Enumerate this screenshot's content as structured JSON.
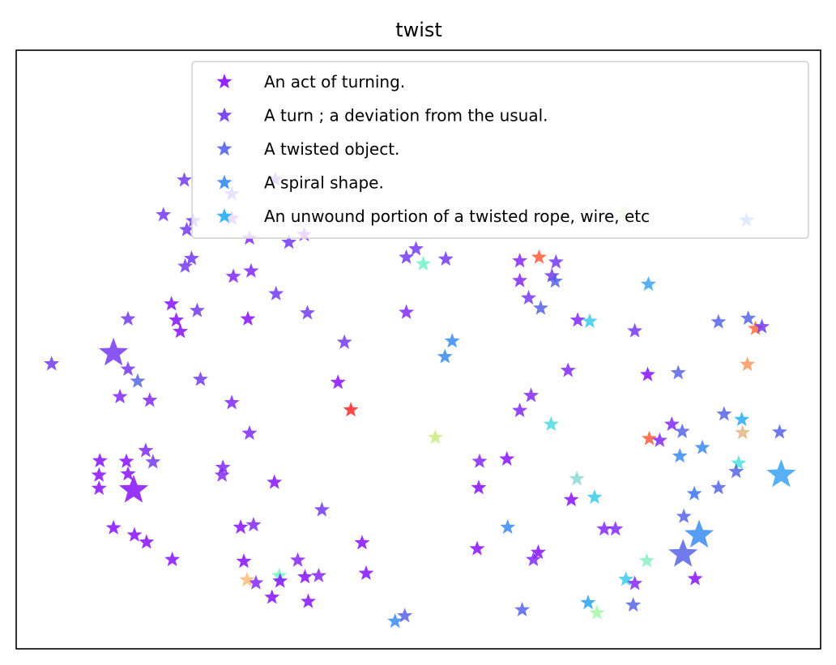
{
  "chart_data": {
    "type": "scatter",
    "title": "twist",
    "xlabel": "",
    "ylabel": "",
    "xlim": [
      0,
      100
    ],
    "ylim": [
      0,
      100
    ],
    "grid": false,
    "axes_ticks": false,
    "legend_placement": "upper-right",
    "marker": "star",
    "legend": [
      {
        "label": "An act of turning.",
        "color": "#8000ff"
      },
      {
        "label": "A turn ; a deviation from the usual.",
        "color": "#6a2cf0"
      },
      {
        "label": "A twisted object.",
        "color": "#4c5ae6"
      },
      {
        "label": "A spiral shape.",
        "color": "#2c83f2"
      },
      {
        "label": "An unwound portion of a twisted rope, wire, etc",
        "color": "#18a8ec"
      }
    ],
    "points": [
      {
        "x": 20.9,
        "y": 78.3,
        "s": 1,
        "c": "#6a2cf0"
      },
      {
        "x": 22.0,
        "y": 71.5,
        "s": 1,
        "c": "#6a2cf0"
      },
      {
        "x": 29.2,
        "y": 63.1,
        "s": 1,
        "c": "#7a1af8"
      },
      {
        "x": 35.8,
        "y": 69.2,
        "s": 1,
        "c": "#8000ff"
      },
      {
        "x": 29.0,
        "y": 68.6,
        "s": 1,
        "c": "#7a1af8"
      },
      {
        "x": 20.4,
        "y": 53.0,
        "s": 1,
        "c": "#8000ff"
      },
      {
        "x": 32.2,
        "y": 78.4,
        "s": 1,
        "c": "#6a2cf0"
      },
      {
        "x": 26.8,
        "y": 76.0,
        "s": 1,
        "c": "#6a2cf0"
      },
      {
        "x": 33.9,
        "y": 67.9,
        "s": 1,
        "c": "#6a2cf0"
      },
      {
        "x": 27.0,
        "y": 62.2,
        "s": 1,
        "c": "#7a1af8"
      },
      {
        "x": 36.2,
        "y": 56.1,
        "s": 1,
        "c": "#6a2cf0"
      },
      {
        "x": 32.3,
        "y": 59.3,
        "s": 1,
        "c": "#6a2cf0"
      },
      {
        "x": 19.9,
        "y": 54.9,
        "s": 1,
        "c": "#8000ff"
      },
      {
        "x": 22.5,
        "y": 56.5,
        "s": 1,
        "c": "#6a2cf0"
      },
      {
        "x": 19.3,
        "y": 57.6,
        "s": 1,
        "c": "#8000ff"
      },
      {
        "x": 21.8,
        "y": 65.2,
        "s": 1,
        "c": "#6a2cf0"
      },
      {
        "x": 21.0,
        "y": 63.9,
        "s": 1,
        "c": "#6a2cf0"
      },
      {
        "x": 26.8,
        "y": 71.9,
        "s": 1,
        "c": "#7a1af8"
      },
      {
        "x": 18.3,
        "y": 72.5,
        "s": 1,
        "c": "#6a2cf0"
      },
      {
        "x": 21.2,
        "y": 70.0,
        "s": 1,
        "c": "#6a2cf0"
      },
      {
        "x": 28.8,
        "y": 55.1,
        "s": 1,
        "c": "#8000ff"
      },
      {
        "x": 4.4,
        "y": 47.6,
        "s": 1,
        "c": "#6a2cf0"
      },
      {
        "x": 15.1,
        "y": 44.7,
        "s": 1,
        "c": "#4c5ae6"
      },
      {
        "x": 13.9,
        "y": 46.7,
        "s": 1,
        "c": "#6a2cf0"
      },
      {
        "x": 12.1,
        "y": 49.4,
        "s": 3,
        "c": "#6a2cf0"
      },
      {
        "x": 13.9,
        "y": 55.1,
        "s": 1,
        "c": "#6a2cf0"
      },
      {
        "x": 12.9,
        "y": 42.1,
        "s": 1,
        "c": "#7a1af8"
      },
      {
        "x": 16.6,
        "y": 41.5,
        "s": 1,
        "c": "#7a1af8"
      },
      {
        "x": 22.9,
        "y": 45.0,
        "s": 1,
        "c": "#6a2cf0"
      },
      {
        "x": 26.8,
        "y": 41.1,
        "s": 1,
        "c": "#7a1af8"
      },
      {
        "x": 29.0,
        "y": 36.0,
        "s": 1,
        "c": "#7a1af8"
      },
      {
        "x": 16.1,
        "y": 33.1,
        "s": 1,
        "c": "#7a1af8"
      },
      {
        "x": 17.0,
        "y": 31.2,
        "s": 1,
        "c": "#6a2cf0"
      },
      {
        "x": 10.4,
        "y": 31.4,
        "s": 1,
        "c": "#8000ff"
      },
      {
        "x": 13.7,
        "y": 31.3,
        "s": 1,
        "c": "#8000ff"
      },
      {
        "x": 10.3,
        "y": 29.0,
        "s": 1,
        "c": "#8000ff"
      },
      {
        "x": 13.9,
        "y": 29.2,
        "s": 1,
        "c": "#8000ff"
      },
      {
        "x": 10.3,
        "y": 26.8,
        "s": 1,
        "c": "#8000ff"
      },
      {
        "x": 14.6,
        "y": 26.5,
        "s": 3,
        "c": "#8000ff"
      },
      {
        "x": 25.7,
        "y": 30.3,
        "s": 1,
        "c": "#7a1af8"
      },
      {
        "x": 25.6,
        "y": 29.0,
        "s": 1,
        "c": "#7a1af8"
      },
      {
        "x": 32.1,
        "y": 27.8,
        "s": 1,
        "c": "#8000ff"
      },
      {
        "x": 38.0,
        "y": 23.2,
        "s": 1,
        "c": "#6a2cf0"
      },
      {
        "x": 12.1,
        "y": 20.2,
        "s": 1,
        "c": "#8000ff"
      },
      {
        "x": 14.7,
        "y": 19.0,
        "s": 1,
        "c": "#8000ff"
      },
      {
        "x": 16.2,
        "y": 17.8,
        "s": 1,
        "c": "#8000ff"
      },
      {
        "x": 19.4,
        "y": 14.9,
        "s": 1,
        "c": "#8000ff"
      },
      {
        "x": 27.9,
        "y": 20.3,
        "s": 1,
        "c": "#8000ff"
      },
      {
        "x": 29.5,
        "y": 20.7,
        "s": 1,
        "c": "#7a1af8"
      },
      {
        "x": 28.3,
        "y": 14.6,
        "s": 1,
        "c": "#8000ff"
      },
      {
        "x": 29.8,
        "y": 11.0,
        "s": 1,
        "c": "#7a1af8"
      },
      {
        "x": 28.7,
        "y": 11.5,
        "s": 1,
        "c": "#fcb870"
      },
      {
        "x": 32.7,
        "y": 12.2,
        "s": 1,
        "c": "#66f2c0"
      },
      {
        "x": 32.8,
        "y": 11.3,
        "s": 1,
        "c": "#8000ff"
      },
      {
        "x": 31.8,
        "y": 8.6,
        "s": 1,
        "c": "#8000ff"
      },
      {
        "x": 35.0,
        "y": 14.8,
        "s": 1,
        "c": "#7a1af8"
      },
      {
        "x": 35.9,
        "y": 12.0,
        "s": 1,
        "c": "#8000ff"
      },
      {
        "x": 37.6,
        "y": 12.2,
        "s": 1,
        "c": "#7a1af8"
      },
      {
        "x": 36.3,
        "y": 7.9,
        "s": 1,
        "c": "#8000ff"
      },
      {
        "x": 43.0,
        "y": 17.7,
        "s": 1,
        "c": "#8000ff"
      },
      {
        "x": 43.5,
        "y": 12.6,
        "s": 1,
        "c": "#8000ff"
      },
      {
        "x": 40.0,
        "y": 44.5,
        "s": 1,
        "c": "#8000ff"
      },
      {
        "x": 41.6,
        "y": 39.9,
        "s": 1,
        "c": "#ff1a1a"
      },
      {
        "x": 40.8,
        "y": 51.2,
        "s": 1,
        "c": "#6a2cf0"
      },
      {
        "x": 48.5,
        "y": 65.4,
        "s": 1,
        "c": "#6a2cf0"
      },
      {
        "x": 48.5,
        "y": 56.2,
        "s": 1,
        "c": "#7a1af8"
      },
      {
        "x": 49.7,
        "y": 66.8,
        "s": 1,
        "c": "#6a2cf0"
      },
      {
        "x": 50.6,
        "y": 64.3,
        "s": 1,
        "c": "#66f2c0"
      },
      {
        "x": 53.4,
        "y": 65.1,
        "s": 1,
        "c": "#6a2cf0"
      },
      {
        "x": 54.2,
        "y": 51.4,
        "s": 1,
        "c": "#2c83f2"
      },
      {
        "x": 53.3,
        "y": 48.8,
        "s": 1,
        "c": "#2c83f2"
      },
      {
        "x": 52.1,
        "y": 35.3,
        "s": 1,
        "c": "#c8e880"
      },
      {
        "x": 57.6,
        "y": 31.3,
        "s": 1,
        "c": "#7a1af8"
      },
      {
        "x": 61.0,
        "y": 31.7,
        "s": 1,
        "c": "#8000ff"
      },
      {
        "x": 57.5,
        "y": 26.9,
        "s": 1,
        "c": "#8000ff"
      },
      {
        "x": 57.3,
        "y": 16.7,
        "s": 1,
        "c": "#8000ff"
      },
      {
        "x": 61.1,
        "y": 20.3,
        "s": 1,
        "c": "#2c83f2"
      },
      {
        "x": 64.9,
        "y": 16.1,
        "s": 1,
        "c": "#8000ff"
      },
      {
        "x": 64.3,
        "y": 14.9,
        "s": 1,
        "c": "#7a1af8"
      },
      {
        "x": 62.9,
        "y": 6.5,
        "s": 1,
        "c": "#4c5ae6"
      },
      {
        "x": 47.1,
        "y": 4.6,
        "s": 1,
        "c": "#2c83f2"
      },
      {
        "x": 48.3,
        "y": 5.5,
        "s": 1,
        "c": "#4c5ae6"
      },
      {
        "x": 62.6,
        "y": 39.8,
        "s": 1,
        "c": "#7a1af8"
      },
      {
        "x": 64.0,
        "y": 42.3,
        "s": 1,
        "c": "#7a1af8"
      },
      {
        "x": 68.6,
        "y": 46.5,
        "s": 1,
        "c": "#7a1af8"
      },
      {
        "x": 66.5,
        "y": 37.5,
        "s": 1,
        "c": "#44d8e0"
      },
      {
        "x": 62.6,
        "y": 64.8,
        "s": 1,
        "c": "#7a1af8"
      },
      {
        "x": 62.6,
        "y": 61.5,
        "s": 1,
        "c": "#7a1af8"
      },
      {
        "x": 65.0,
        "y": 65.4,
        "s": 1,
        "c": "#ff5030"
      },
      {
        "x": 67.1,
        "y": 64.6,
        "s": 1,
        "c": "#6a2cf0"
      },
      {
        "x": 66.6,
        "y": 62.3,
        "s": 1,
        "c": "#6a2cf0"
      },
      {
        "x": 67.0,
        "y": 61.4,
        "s": 1,
        "c": "#4c5ae6"
      },
      {
        "x": 63.7,
        "y": 58.6,
        "s": 1,
        "c": "#6a2cf0"
      },
      {
        "x": 65.2,
        "y": 56.9,
        "s": 1,
        "c": "#4c5ae6"
      },
      {
        "x": 69.8,
        "y": 54.9,
        "s": 1,
        "c": "#7a1af8"
      },
      {
        "x": 71.3,
        "y": 54.7,
        "s": 1,
        "c": "#2cc8e8"
      },
      {
        "x": 75.5,
        "y": 72.8,
        "s": 1,
        "c": "#b0f080"
      },
      {
        "x": 78.6,
        "y": 60.9,
        "s": 1,
        "c": "#2c9cf0"
      },
      {
        "x": 76.9,
        "y": 53.1,
        "s": 1,
        "c": "#6a2cf0"
      },
      {
        "x": 78.5,
        "y": 45.8,
        "s": 1,
        "c": "#8000ff"
      },
      {
        "x": 82.3,
        "y": 46.1,
        "s": 1,
        "c": "#4c5ae6"
      },
      {
        "x": 87.3,
        "y": 54.6,
        "s": 1,
        "c": "#4c5ae6"
      },
      {
        "x": 91.0,
        "y": 55.2,
        "s": 1,
        "c": "#4c5ae6"
      },
      {
        "x": 91.9,
        "y": 53.5,
        "s": 1,
        "c": "#ff6030"
      },
      {
        "x": 92.7,
        "y": 53.8,
        "s": 1,
        "c": "#6a2cf0"
      },
      {
        "x": 90.9,
        "y": 47.5,
        "s": 1,
        "c": "#ff9050"
      },
      {
        "x": 90.8,
        "y": 71.6,
        "s": 1,
        "c": "#2c6cf0"
      },
      {
        "x": 81.5,
        "y": 37.5,
        "s": 1,
        "c": "#7a1af8"
      },
      {
        "x": 82.8,
        "y": 36.3,
        "s": 1,
        "c": "#4c5ae6"
      },
      {
        "x": 78.7,
        "y": 35.1,
        "s": 1,
        "c": "#ff5030"
      },
      {
        "x": 80.0,
        "y": 34.8,
        "s": 1,
        "c": "#7a1af8"
      },
      {
        "x": 85.3,
        "y": 33.6,
        "s": 1,
        "c": "#2c83f2"
      },
      {
        "x": 82.5,
        "y": 32.2,
        "s": 1,
        "c": "#2c83f2"
      },
      {
        "x": 88.0,
        "y": 39.2,
        "s": 1,
        "c": "#4c5ae6"
      },
      {
        "x": 90.2,
        "y": 38.3,
        "s": 1,
        "c": "#18a8ec"
      },
      {
        "x": 90.3,
        "y": 36.1,
        "s": 1,
        "c": "#e0b080"
      },
      {
        "x": 94.9,
        "y": 36.2,
        "s": 1,
        "c": "#4c5ae6"
      },
      {
        "x": 89.8,
        "y": 31.0,
        "s": 1,
        "c": "#40e0d8"
      },
      {
        "x": 89.5,
        "y": 29.6,
        "s": 1,
        "c": "#4c5ae6"
      },
      {
        "x": 95.1,
        "y": 29.1,
        "s": 3,
        "c": "#2c9cf0"
      },
      {
        "x": 87.3,
        "y": 26.9,
        "s": 1,
        "c": "#4c5ae6"
      },
      {
        "x": 84.3,
        "y": 25.9,
        "s": 1,
        "c": "#2c6cf0"
      },
      {
        "x": 83.0,
        "y": 22.1,
        "s": 1,
        "c": "#4c5ae6"
      },
      {
        "x": 84.9,
        "y": 19.0,
        "s": 3,
        "c": "#2c83f2"
      },
      {
        "x": 82.9,
        "y": 15.8,
        "s": 3,
        "c": "#4c5ae6"
      },
      {
        "x": 84.4,
        "y": 11.7,
        "s": 1,
        "c": "#8000ff"
      },
      {
        "x": 69.7,
        "y": 28.4,
        "s": 1,
        "c": "#80d8d0"
      },
      {
        "x": 71.9,
        "y": 25.3,
        "s": 1,
        "c": "#2cc8e8"
      },
      {
        "x": 69.0,
        "y": 24.9,
        "s": 1,
        "c": "#8000ff"
      },
      {
        "x": 73.1,
        "y": 20.0,
        "s": 1,
        "c": "#7a1af8"
      },
      {
        "x": 74.5,
        "y": 20.0,
        "s": 1,
        "c": "#7a1af8"
      },
      {
        "x": 78.4,
        "y": 14.7,
        "s": 1,
        "c": "#80f0c0"
      },
      {
        "x": 75.8,
        "y": 11.6,
        "s": 1,
        "c": "#2cc8e8"
      },
      {
        "x": 76.9,
        "y": 10.9,
        "s": 1,
        "c": "#7a1af8"
      },
      {
        "x": 71.1,
        "y": 7.7,
        "s": 1,
        "c": "#1a9ce8"
      },
      {
        "x": 72.2,
        "y": 6.0,
        "s": 1,
        "c": "#a0f8a0"
      },
      {
        "x": 76.7,
        "y": 7.3,
        "s": 1,
        "c": "#4c5ae6"
      }
    ]
  }
}
